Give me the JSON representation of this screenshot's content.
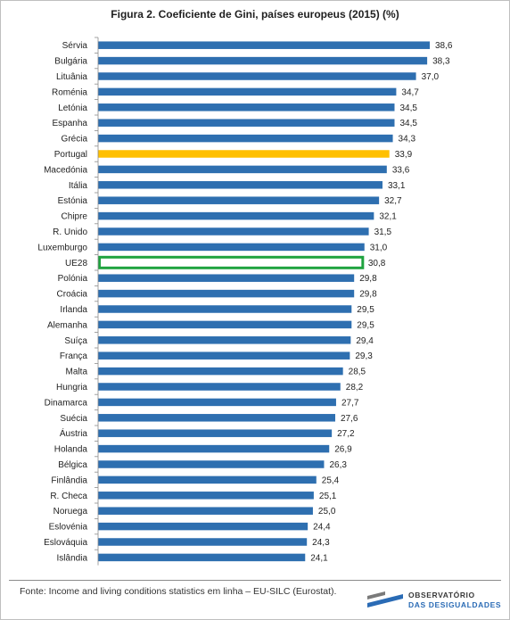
{
  "title": "Figura 2. Coeficiente de Gini, países europeus (2015) (%)",
  "source": "Fonte: Income and living conditions statistics em linha – EU-SILC (Eurostat).",
  "logo": {
    "line1": "OBSERVATÓRIO",
    "line2": "DAS DESIGUALDADES"
  },
  "colors": {
    "bar": "#2e6fb0",
    "highlight": "#ffc000",
    "outline": "#1fa33f"
  },
  "chart_data": {
    "type": "bar",
    "orientation": "horizontal",
    "title": "Figura 2. Coeficiente de Gini, países europeus (2015) (%)",
    "categories": [
      "Sérvia",
      "Bulgária",
      "Lituânia",
      "Roménia",
      "Letónia",
      "Espanha",
      "Grécia",
      "Portugal",
      "Macedónia",
      "Itália",
      "Estónia",
      "Chipre",
      "R. Unido",
      "Luxemburgo",
      "UE28",
      "Polónia",
      "Croácia",
      "Irlanda",
      "Alemanha",
      "Suíça",
      "França",
      "Malta",
      "Hungria",
      "Dinamarca",
      "Suécia",
      "Áustria",
      "Holanda",
      "Bélgica",
      "Finlândia",
      "R. Checa",
      "Noruega",
      "Eslovénia",
      "Eslováquia",
      "Islândia"
    ],
    "values": [
      38.6,
      38.3,
      37.0,
      34.7,
      34.5,
      34.5,
      34.3,
      33.9,
      33.6,
      33.1,
      32.7,
      32.1,
      31.5,
      31.0,
      30.8,
      29.8,
      29.8,
      29.5,
      29.5,
      29.4,
      29.3,
      28.5,
      28.2,
      27.7,
      27.6,
      27.2,
      26.9,
      26.3,
      25.4,
      25.1,
      25.0,
      24.4,
      24.3,
      24.1
    ],
    "labels": [
      "38,6",
      "38,3",
      "37,0",
      "34,7",
      "34,5",
      "34,5",
      "34,3",
      "33,9",
      "33,6",
      "33,1",
      "32,7",
      "32,1",
      "31,5",
      "31,0",
      "30,8",
      "29,8",
      "29,8",
      "29,5",
      "29,5",
      "29,4",
      "29,3",
      "28,5",
      "28,2",
      "27,7",
      "27,6",
      "27,2",
      "26,9",
      "26,3",
      "25,4",
      "25,1",
      "25,0",
      "24,4",
      "24,3",
      "24,1"
    ],
    "highlighted": "Portugal",
    "outlined": "UE28",
    "xlim": [
      0,
      38.6
    ],
    "grid": false,
    "legend": "none"
  }
}
